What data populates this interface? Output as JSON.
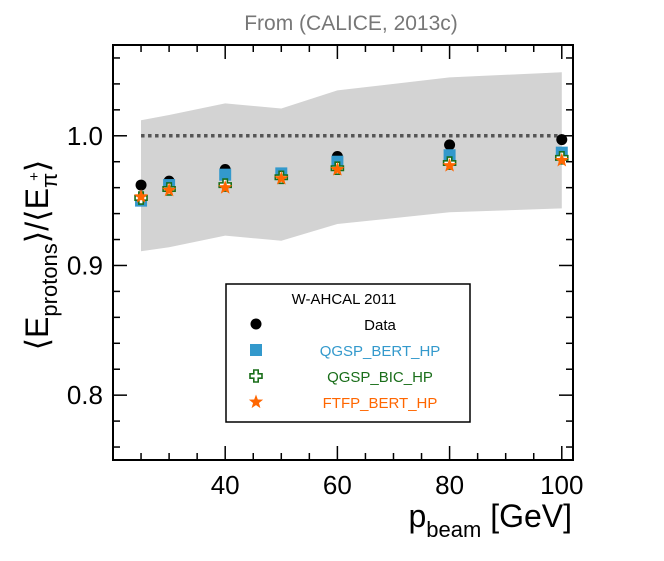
{
  "chart_data": {
    "type": "scatter",
    "title": "From (CALICE, 2013c)",
    "xlabel": {
      "main": "p",
      "sub": "beam",
      "unit": " [GeV]"
    },
    "ylabel": {
      "open1": "⟨E",
      "sub1": "protons",
      "mid": "⟩/⟨E",
      "sub2": "π",
      "sup2": "+",
      "close": "⟩"
    },
    "xlim": [
      20,
      102
    ],
    "ylim": [
      0.75,
      1.07
    ],
    "xticks": [
      40,
      60,
      80,
      100
    ],
    "yticks": [
      0.8,
      0.9,
      1.0
    ],
    "xtick_labels": [
      "40",
      "60",
      "80",
      "100"
    ],
    "ytick_labels": [
      "0.8",
      "0.9",
      "1.0"
    ],
    "reference_line": 1.0,
    "band": {
      "x": [
        25,
        30,
        40,
        50,
        60,
        80,
        100
      ],
      "upper": [
        1.012,
        1.016,
        1.025,
        1.021,
        1.035,
        1.045,
        1.049
      ],
      "lower": [
        0.911,
        0.914,
        0.923,
        0.919,
        0.932,
        0.941,
        0.944
      ]
    },
    "legend": {
      "title": "W-AHCAL 2011",
      "position": "lower-center"
    },
    "series": [
      {
        "name": "Data",
        "marker": "circle",
        "color": "#000000",
        "x": [
          25,
          30,
          40,
          50,
          60,
          80,
          100
        ],
        "y": [
          0.962,
          0.965,
          0.974,
          0.97,
          0.984,
          0.993,
          0.997
        ]
      },
      {
        "name": "QGSP_BERT_HP",
        "marker": "square",
        "color": "#3399cc",
        "x": [
          25,
          30,
          40,
          50,
          60,
          80,
          100
        ],
        "y": [
          0.95,
          0.962,
          0.97,
          0.971,
          0.98,
          0.985,
          0.987
        ]
      },
      {
        "name": "QGSP_BIC_HP",
        "marker": "cross",
        "color": "#1a6e1a",
        "x": [
          25,
          30,
          40,
          50,
          60,
          80,
          100
        ],
        "y": [
          0.952,
          0.959,
          0.962,
          0.968,
          0.975,
          0.979,
          0.983
        ]
      },
      {
        "name": "FTFP_BERT_HP",
        "marker": "star",
        "color": "#ff6600",
        "x": [
          25,
          30,
          40,
          50,
          60,
          80,
          100
        ],
        "y": [
          0.953,
          0.958,
          0.96,
          0.967,
          0.974,
          0.977,
          0.981
        ]
      }
    ]
  }
}
